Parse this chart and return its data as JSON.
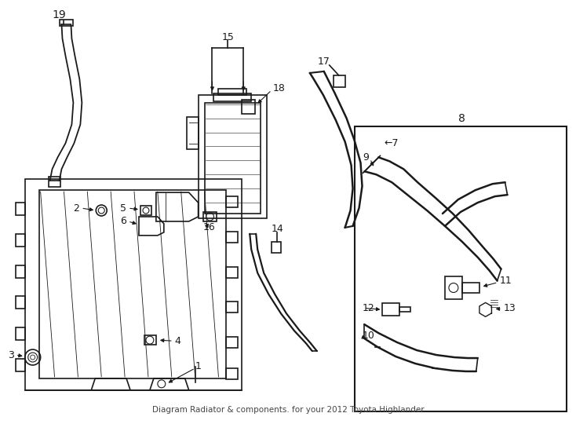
{
  "title": "Diagram Radiator & components. for your 2012 Toyota Highlander",
  "bg_color": "#ffffff",
  "line_color": "#1a1a1a",
  "part_labels": {
    "1": [
      248,
      468,
      215,
      468
    ],
    "2": [
      108,
      277,
      125,
      277
    ],
    "3": [
      22,
      453,
      35,
      453
    ],
    "4": [
      220,
      436,
      200,
      434
    ],
    "5": [
      162,
      268,
      180,
      268
    ],
    "6": [
      162,
      283,
      178,
      281
    ],
    "7": [
      488,
      183,
      468,
      183
    ],
    "8": [
      588,
      152,
      588,
      165
    ],
    "9": [
      468,
      203,
      482,
      210
    ],
    "10": [
      465,
      428,
      480,
      432
    ],
    "11": [
      638,
      358,
      620,
      366
    ],
    "12": [
      465,
      395,
      495,
      397
    ],
    "13": [
      643,
      395,
      628,
      395
    ],
    "14": [
      353,
      293,
      353,
      310
    ],
    "15": [
      293,
      48,
      293,
      118
    ],
    "16": [
      258,
      286,
      275,
      276
    ],
    "17": [
      413,
      78,
      435,
      100
    ],
    "18": [
      346,
      113,
      328,
      133
    ],
    "19": [
      68,
      18,
      80,
      30
    ]
  }
}
